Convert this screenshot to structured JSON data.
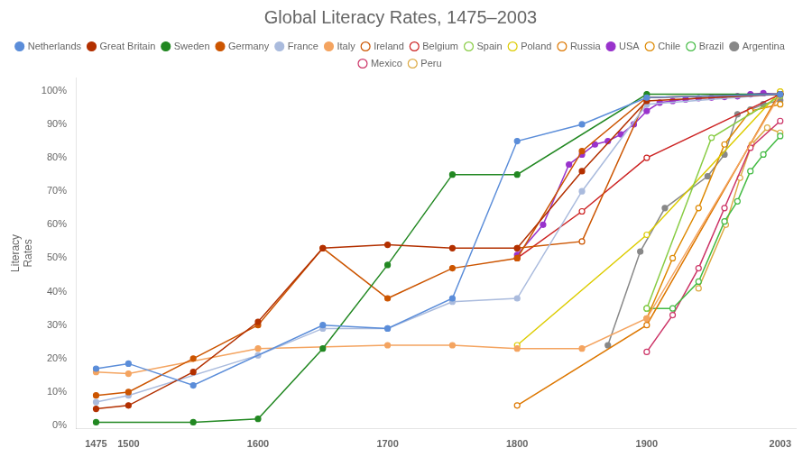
{
  "chart_data": {
    "type": "line",
    "title": "Global Literacy Rates, 1475–2003",
    "ylabel": "Literacy\nRates",
    "xlim": [
      1460,
      2015
    ],
    "xticks": [
      1475,
      1500,
      1600,
      1700,
      1800,
      1900,
      2003
    ],
    "ylim": [
      -0.01,
      1.04
    ],
    "yticks": [
      {
        "value": 0,
        "label": "0%"
      },
      {
        "value": 0.1,
        "label": "10%"
      },
      {
        "value": 0.2,
        "label": "20%"
      },
      {
        "value": 0.3,
        "label": "30%"
      },
      {
        "value": 0.4,
        "label": "40%"
      },
      {
        "value": 0.5,
        "label": "50%"
      },
      {
        "value": 0.6,
        "label": "60%"
      },
      {
        "value": 0.7,
        "label": "70%"
      },
      {
        "value": 0.8,
        "label": "80%"
      },
      {
        "value": 0.9,
        "label": "90%"
      },
      {
        "value": 1.0,
        "label": "100%"
      }
    ],
    "grid": false,
    "legend": "top",
    "series": [
      {
        "name": "Netherlands",
        "color": "#5b8dd9",
        "marker": "filled",
        "x": [
          1475,
          1500,
          1550,
          1650,
          1700,
          1750,
          1800,
          1850,
          1900,
          2003
        ],
        "values": [
          0.17,
          0.185,
          0.12,
          0.3,
          0.29,
          0.38,
          0.85,
          0.9,
          0.98,
          0.99
        ]
      },
      {
        "name": "Great Britain",
        "color": "#b33000",
        "marker": "filled",
        "x": [
          1475,
          1500,
          1550,
          1600,
          1650,
          1700,
          1750,
          1800,
          1850,
          1900,
          2003
        ],
        "values": [
          0.05,
          0.06,
          0.16,
          0.31,
          0.53,
          0.54,
          0.53,
          0.53,
          0.76,
          0.97,
          0.99
        ]
      },
      {
        "name": "Sweden",
        "color": "#228822",
        "marker": "filled",
        "x": [
          1475,
          1550,
          1600,
          1650,
          1700,
          1750,
          1800,
          1900,
          2003
        ],
        "values": [
          0.01,
          0.01,
          0.02,
          0.23,
          0.48,
          0.75,
          0.75,
          0.99,
          0.99
        ]
      },
      {
        "name": "Germany",
        "color": "#cc5500",
        "marker": "filled",
        "x": [
          1475,
          1500,
          1550,
          1600,
          1650,
          1700,
          1750,
          1800,
          1850,
          1900,
          2003
        ],
        "values": [
          0.09,
          0.1,
          0.2,
          0.3,
          0.53,
          0.38,
          0.47,
          0.5,
          0.82,
          0.98,
          0.99
        ]
      },
      {
        "name": "France",
        "color": "#aabbdd",
        "marker": "filled",
        "x": [
          1475,
          1500,
          1600,
          1650,
          1700,
          1750,
          1800,
          1850,
          1900,
          2003
        ],
        "values": [
          0.07,
          0.09,
          0.21,
          0.29,
          0.29,
          0.37,
          0.38,
          0.7,
          0.96,
          0.99
        ]
      },
      {
        "name": "Italy",
        "color": "#f4a460",
        "marker": "filled",
        "x": [
          1475,
          1500,
          1600,
          1700,
          1750,
          1800,
          1850,
          1900,
          2003
        ],
        "values": [
          0.16,
          0.155,
          0.23,
          0.24,
          0.24,
          0.23,
          0.23,
          0.32,
          0.99
        ]
      },
      {
        "name": "Ireland",
        "color": "#cc5500",
        "marker": "open",
        "x": [
          1800,
          1850,
          1900,
          2003
        ],
        "values": [
          0.53,
          0.55,
          0.98,
          0.99
        ]
      },
      {
        "name": "Belgium",
        "color": "#cc2222",
        "marker": "open",
        "x": [
          1800,
          1850,
          1900,
          2003
        ],
        "values": [
          0.5,
          0.64,
          0.8,
          0.99
        ]
      },
      {
        "name": "Spain",
        "color": "#88cc44",
        "marker": "open",
        "x": [
          1900,
          1950,
          2003
        ],
        "values": [
          0.35,
          0.86,
          0.985
        ]
      },
      {
        "name": "Poland",
        "color": "#ddcc00",
        "marker": "open",
        "x": [
          1800,
          1900,
          2003
        ],
        "values": [
          0.24,
          0.57,
          0.998
        ]
      },
      {
        "name": "Russia",
        "color": "#dd7700",
        "marker": "open",
        "x": [
          1800,
          1900,
          2003
        ],
        "values": [
          0.06,
          0.3,
          0.997
        ]
      },
      {
        "name": "USA",
        "color": "#9933cc",
        "marker": "filled",
        "x": [
          1800,
          1820,
          1840,
          1850,
          1860,
          1870,
          1880,
          1890,
          1900,
          1910,
          1920,
          1930,
          1940,
          1950,
          1960,
          1970,
          1980,
          1990,
          2003
        ],
        "values": [
          0.51,
          0.6,
          0.78,
          0.81,
          0.84,
          0.85,
          0.87,
          0.9,
          0.94,
          0.965,
          0.97,
          0.975,
          0.978,
          0.98,
          0.982,
          0.984,
          0.99,
          0.993,
          0.99
        ]
      },
      {
        "name": "Chile",
        "color": "#dd8800",
        "marker": "open",
        "x": [
          1900,
          1920,
          1940,
          1960,
          1980,
          2003
        ],
        "values": [
          0.32,
          0.5,
          0.65,
          0.84,
          0.94,
          0.96
        ]
      },
      {
        "name": "Brazil",
        "color": "#44bb44",
        "marker": "open",
        "x": [
          1900,
          1920,
          1940,
          1960,
          1970,
          1980,
          1990,
          2003
        ],
        "values": [
          0.35,
          0.35,
          0.43,
          0.61,
          0.67,
          0.76,
          0.81,
          0.865
        ]
      },
      {
        "name": "Argentina",
        "color": "#888888",
        "marker": "filled",
        "x": [
          1870,
          1895,
          1914,
          1947,
          1960,
          1970,
          1980,
          1990,
          2003
        ],
        "values": [
          0.24,
          0.52,
          0.65,
          0.745,
          0.81,
          0.93,
          0.944,
          0.96,
          0.972
        ]
      },
      {
        "name": "Mexico",
        "color": "#cc3366",
        "marker": "open",
        "x": [
          1900,
          1920,
          1940,
          1960,
          1980,
          2003
        ],
        "values": [
          0.22,
          0.33,
          0.47,
          0.65,
          0.83,
          0.91
        ]
      },
      {
        "name": "Peru",
        "color": "#ddaa44",
        "marker": "open",
        "x": [
          1940,
          1961,
          1972,
          1981,
          1993,
          2003
        ],
        "values": [
          0.41,
          0.6,
          0.74,
          0.84,
          0.89,
          0.875
        ]
      }
    ]
  }
}
